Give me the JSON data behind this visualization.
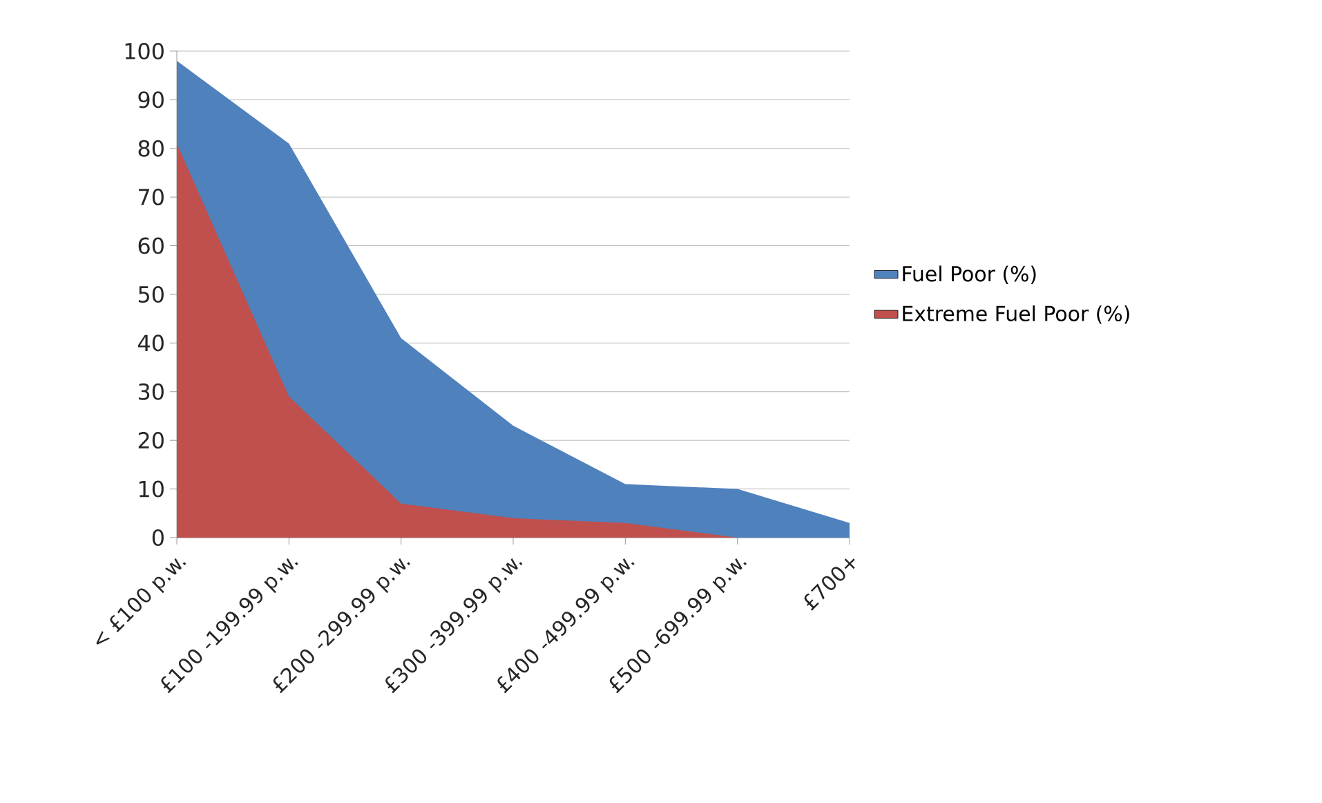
{
  "chart_data": {
    "type": "area",
    "categories": [
      "< £100 p.w.",
      "£100 -199.99 p.w.",
      "£200 -299.99 p.w.",
      "£300 -399.99 p.w.",
      "£400 -499.99 p.w.",
      "£500 -699.99 p.w.",
      "£700+"
    ],
    "series": [
      {
        "name": "Fuel Poor (%)",
        "color": "#4f81bd",
        "values": [
          98,
          81,
          41,
          23,
          11,
          10,
          3
        ]
      },
      {
        "name": "Extreme Fuel Poor (%)",
        "color": "#c0504d",
        "values": [
          81,
          29,
          7,
          4,
          3,
          0,
          0
        ]
      }
    ],
    "ylim": [
      0,
      100
    ],
    "yticks": [
      0,
      10,
      20,
      30,
      40,
      50,
      60,
      70,
      80,
      90,
      100
    ],
    "grid": "y",
    "legend": "right"
  }
}
